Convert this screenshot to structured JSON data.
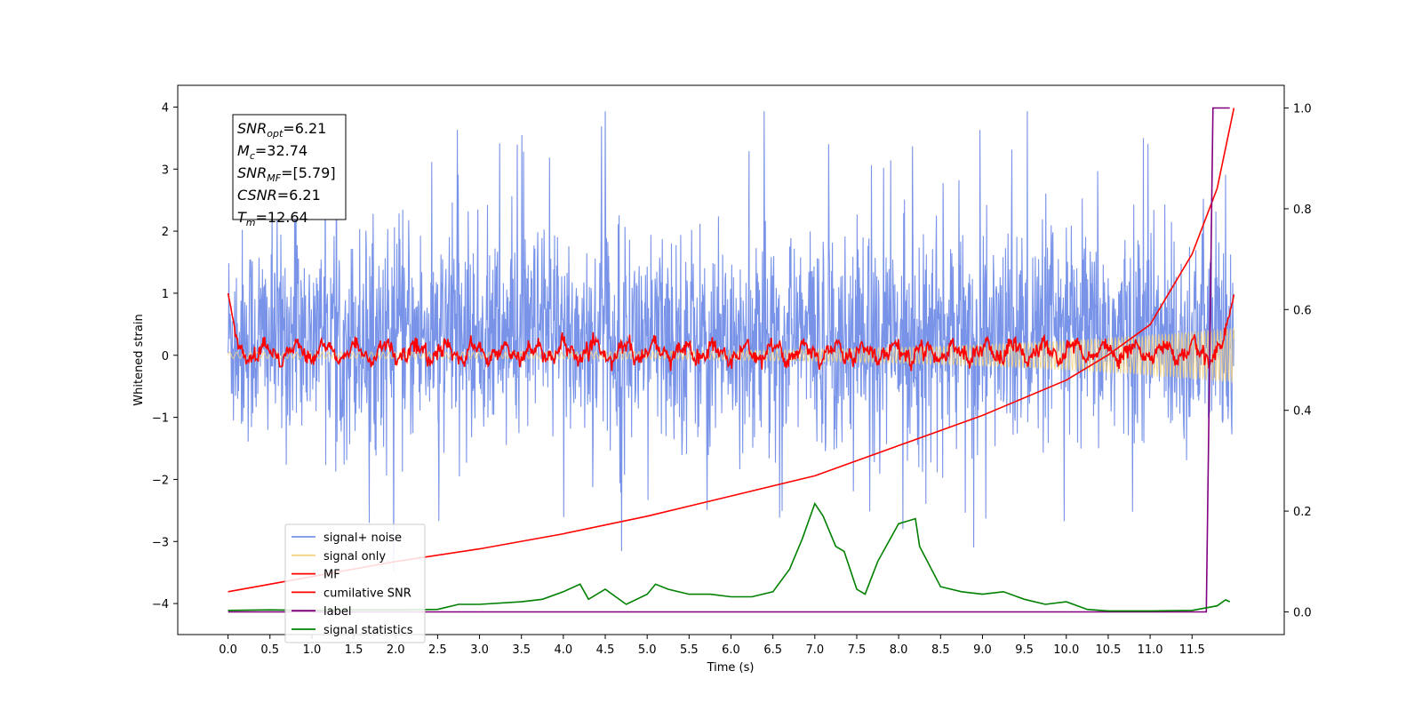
{
  "chart_data": {
    "type": "line",
    "xlabel": "Time (s)",
    "ylabel": "Whitened strain",
    "xlim": [
      -0.6,
      12.6
    ],
    "ylim": [
      -4.5,
      4.35
    ],
    "y2lim": [
      -0.045,
      1.045
    ],
    "x_ticks": [
      0.0,
      0.5,
      1.0,
      1.5,
      2.0,
      2.5,
      3.0,
      3.5,
      4.0,
      4.5,
      5.0,
      5.5,
      6.0,
      6.5,
      7.0,
      7.5,
      8.0,
      8.5,
      9.0,
      9.5,
      10.0,
      10.5,
      11.0,
      11.5
    ],
    "x_tick_labels": [
      "0.0",
      "0.5",
      "1.0",
      "1.5",
      "2.0",
      "2.5",
      "3.0",
      "3.5",
      "4.0",
      "4.5",
      "5.0",
      "5.5",
      "6.0",
      "6.5",
      "7.0",
      "7.5",
      "8.0",
      "8.5",
      "9.0",
      "9.5",
      "10.0",
      "10.5",
      "11.0",
      "11.5"
    ],
    "y_ticks": [
      -4,
      -3,
      -2,
      -1,
      0,
      1,
      2,
      3,
      4
    ],
    "y_tick_labels": [
      "−4",
      "−3",
      "−2",
      "−1",
      "0",
      "1",
      "2",
      "3",
      "4"
    ],
    "y2_ticks": [
      0.0,
      0.2,
      0.4,
      0.6,
      0.8,
      1.0
    ],
    "y2_tick_labels": [
      "0.0",
      "0.2",
      "0.4",
      "0.6",
      "0.8",
      "1.0"
    ],
    "info_box": [
      {
        "sym": "SNR",
        "sub": "opt",
        "val": "=6.21"
      },
      {
        "sym": "M",
        "sub": "c",
        "val": "=32.74"
      },
      {
        "sym": "SNR",
        "sub": "MF",
        "val": "=[5.79]"
      },
      {
        "sym": "CSNR",
        "sub": "",
        "val": "=6.21"
      },
      {
        "sym": "T",
        "sub": "m",
        "val": "=12.64"
      }
    ],
    "legend": {
      "position": "lower-left",
      "entries": [
        {
          "label": "signal+ noise",
          "color": "#7893e8"
        },
        {
          "label": "signal only",
          "color": "#f5d283"
        },
        {
          "label": "MF",
          "color": "#ff0000"
        },
        {
          "label": "cumilative SNR",
          "color": "#ff0000"
        },
        {
          "label": "label",
          "color": "#800080"
        },
        {
          "label": "signal statistics",
          "color": "#008000"
        }
      ]
    },
    "series": [
      {
        "name": "signal+ noise",
        "axis": "left",
        "color": "#7893e8",
        "x_range": [
          0.0,
          12.0
        ],
        "center": 0.3,
        "typical_range": [
          -2.0,
          2.6
        ],
        "max": 3.93,
        "min": -4.05
      },
      {
        "name": "signal only",
        "axis": "left",
        "color": "#f5d283",
        "x_range": [
          0.0,
          12.0
        ],
        "envelope_start": 0.05,
        "envelope_end": 0.45
      },
      {
        "name": "MF",
        "axis": "left",
        "color": "#ff0000",
        "x_range": [
          0.0,
          12.0
        ],
        "start": 1.0,
        "typical_range": [
          -0.25,
          0.4
        ],
        "end": 0.98
      },
      {
        "name": "cumilative SNR",
        "axis": "right",
        "color": "#ff0000",
        "x": [
          0.0,
          1.0,
          2.0,
          3.0,
          4.0,
          5.0,
          6.0,
          7.0,
          8.0,
          9.0,
          10.0,
          10.5,
          11.0,
          11.5,
          11.8,
          12.0
        ],
        "y": [
          0.04,
          0.07,
          0.1,
          0.125,
          0.155,
          0.19,
          0.23,
          0.27,
          0.33,
          0.39,
          0.46,
          0.51,
          0.57,
          0.71,
          0.84,
          1.0
        ]
      },
      {
        "name": "label",
        "axis": "right",
        "color": "#800080",
        "x": [
          0.0,
          11.67,
          11.75,
          11.95
        ],
        "y": [
          0.0,
          0.0,
          1.0,
          1.0
        ]
      },
      {
        "name": "signal statistics",
        "axis": "right",
        "color": "#008000",
        "x": [
          0.0,
          0.5,
          1.0,
          1.5,
          2.0,
          2.5,
          2.75,
          3.0,
          3.5,
          3.75,
          4.0,
          4.2,
          4.3,
          4.5,
          4.75,
          5.0,
          5.1,
          5.25,
          5.5,
          5.75,
          6.0,
          6.25,
          6.5,
          6.7,
          6.85,
          7.0,
          7.1,
          7.25,
          7.35,
          7.5,
          7.6,
          7.75,
          7.85,
          8.0,
          8.2,
          8.25,
          8.5,
          8.75,
          9.0,
          9.25,
          9.5,
          9.75,
          10.0,
          10.25,
          10.5,
          11.0,
          11.5,
          11.8,
          11.9,
          11.95
        ],
        "y": [
          0.003,
          0.004,
          0.003,
          0.004,
          0.004,
          0.005,
          0.015,
          0.015,
          0.02,
          0.025,
          0.04,
          0.055,
          0.025,
          0.045,
          0.015,
          0.035,
          0.055,
          0.045,
          0.035,
          0.035,
          0.03,
          0.03,
          0.04,
          0.085,
          0.145,
          0.215,
          0.19,
          0.13,
          0.12,
          0.045,
          0.035,
          0.1,
          0.13,
          0.175,
          0.185,
          0.13,
          0.05,
          0.04,
          0.035,
          0.04,
          0.025,
          0.015,
          0.02,
          0.005,
          0.002,
          0.002,
          0.003,
          0.012,
          0.024,
          0.02
        ]
      }
    ]
  }
}
